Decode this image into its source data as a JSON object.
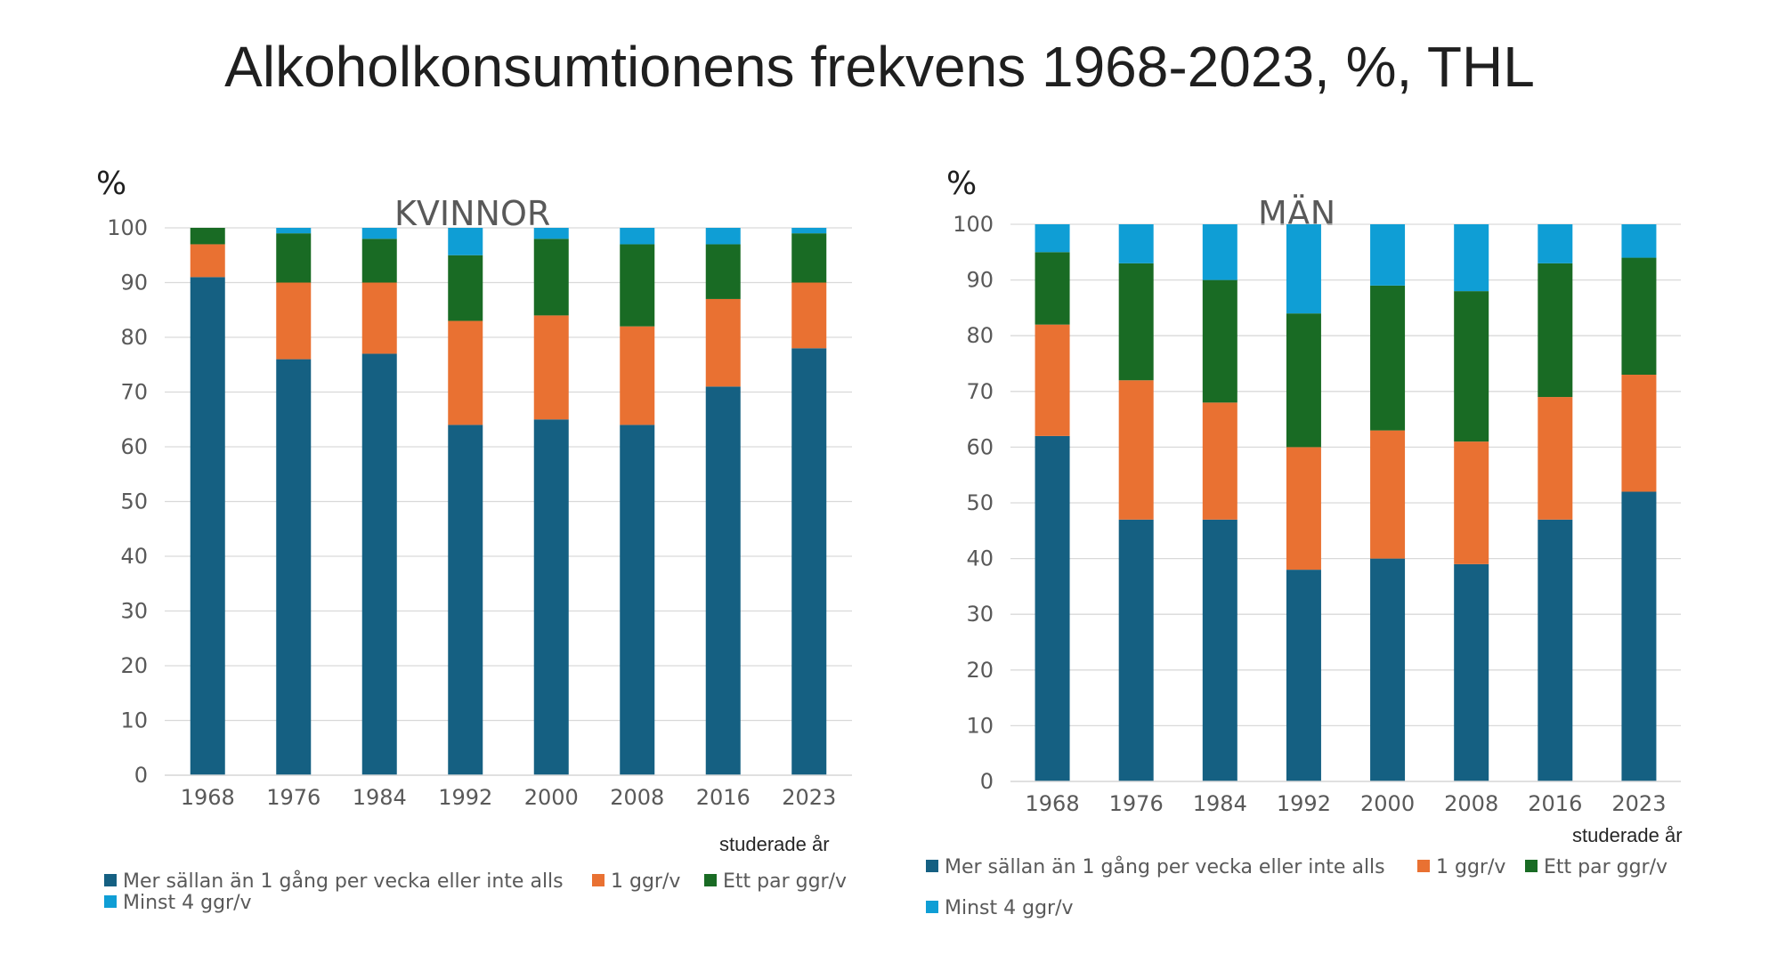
{
  "title": "Alkoholkonsumtionens frekvens 1968-2023, %, THL",
  "colors": {
    "series1": "#156082",
    "series2": "#E97132",
    "series3": "#196B24",
    "series4": "#0F9ED5",
    "grid": "#d9d9d9"
  },
  "chart_data": [
    {
      "type": "bar",
      "stacked": true,
      "title": "KVINNOR",
      "unit_label": "%",
      "xlabel": "studerade år",
      "ylim": [
        0,
        100
      ],
      "yticks": [
        0,
        10,
        20,
        30,
        40,
        50,
        60,
        70,
        80,
        90,
        100
      ],
      "categories": [
        "1968",
        "1976",
        "1984",
        "1992",
        "2000",
        "2008",
        "2016",
        "2023"
      ],
      "series": [
        {
          "name": "Mer sällan än 1 gång per vecka eller inte alls",
          "values": [
            91,
            76,
            77,
            64,
            65,
            64,
            71,
            78
          ]
        },
        {
          "name": "1 ggr/v",
          "values": [
            6,
            14,
            13,
            19,
            19,
            18,
            16,
            12
          ]
        },
        {
          "name": "Ett par ggr/v",
          "values": [
            3,
            9,
            8,
            12,
            14,
            15,
            10,
            9
          ]
        },
        {
          "name": "Minst 4 ggr/v",
          "values": [
            0,
            1,
            2,
            5,
            2,
            3,
            3,
            1
          ]
        }
      ],
      "legend_position": "bottom"
    },
    {
      "type": "bar",
      "stacked": true,
      "title": "MÄN",
      "unit_label": "%",
      "xlabel": "studerade år",
      "ylim": [
        0,
        100
      ],
      "yticks": [
        0,
        10,
        20,
        30,
        40,
        50,
        60,
        70,
        80,
        90,
        100
      ],
      "categories": [
        "1968",
        "1976",
        "1984",
        "1992",
        "2000",
        "2008",
        "2016",
        "2023"
      ],
      "series": [
        {
          "name": "Mer sällan än 1 gång per vecka eller inte alls",
          "values": [
            62,
            47,
            47,
            38,
            40,
            39,
            47,
            52
          ]
        },
        {
          "name": "1 ggr/v",
          "values": [
            20,
            25,
            21,
            22,
            23,
            22,
            22,
            21
          ]
        },
        {
          "name": "Ett par ggr/v",
          "values": [
            13,
            21,
            22,
            24,
            26,
            27,
            24,
            21
          ]
        },
        {
          "name": "Minst 4 ggr/v",
          "values": [
            5,
            7,
            10,
            16,
            11,
            12,
            7,
            6
          ]
        }
      ],
      "legend_position": "bottom"
    }
  ]
}
